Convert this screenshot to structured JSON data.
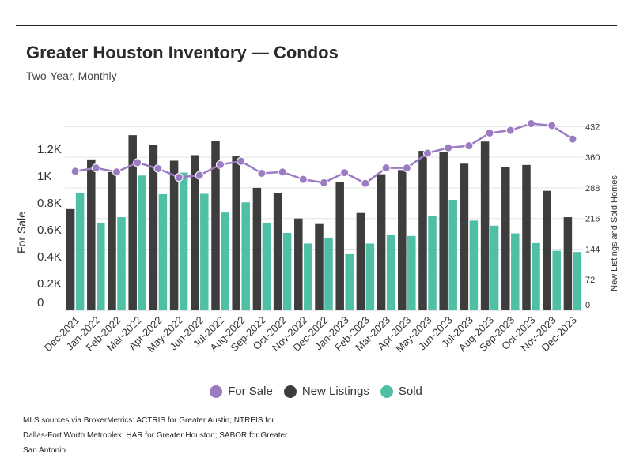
{
  "header": {
    "title": "Greater Houston Inventory — Condos",
    "subtitle": "Two-Year, Monthly"
  },
  "legend": {
    "items": [
      {
        "label": "For Sale",
        "color": "#9b7bc1"
      },
      {
        "label": "New Listings",
        "color": "#3d3d3d"
      },
      {
        "label": "Sold",
        "color": "#4fbfa5"
      }
    ]
  },
  "source": "MLS sources via BrokerMetrics: ACTRIS for Greater Austin; NTREIS for Dallas-Fort Worth Metroplex; HAR for Greater Houston; SABOR for Greater San Antonio",
  "chart_data": {
    "type": "bar",
    "categories": [
      "Dec-2021",
      "Jan-2022",
      "Feb-2022",
      "Mar-2022",
      "Apr-2022",
      "May-2022",
      "Jun-2022",
      "Jul-2022",
      "Aug-2022",
      "Sep-2022",
      "Oct-2022",
      "Nov-2022",
      "Dec-2022",
      "Jan-2023",
      "Feb-2023",
      "Mar-2023",
      "Apr-2023",
      "May-2023",
      "Jun-2023",
      "Jul-2023",
      "Aug-2023",
      "Sep-2023",
      "Oct-2023",
      "Nov-2023",
      "Dec-2023"
    ],
    "series": [
      {
        "name": "For Sale",
        "type": "line",
        "axis": "left",
        "color": "#9b7bc1",
        "values": [
          1035,
          1060,
          1030,
          1100,
          1055,
          990,
          1005,
          1085,
          1110,
          1020,
          1030,
          975,
          950,
          1025,
          945,
          1060,
          1060,
          1170,
          1210,
          1225,
          1320,
          1340,
          1390,
          1375,
          1275
        ]
      },
      {
        "name": "New Listings",
        "type": "bar",
        "axis": "right",
        "color": "#3d3d3d",
        "values": [
          238,
          355,
          325,
          412,
          390,
          352,
          365,
          398,
          362,
          288,
          275,
          216,
          203,
          302,
          229,
          320,
          330,
          375,
          372,
          345,
          397,
          338,
          342,
          281,
          219
        ]
      },
      {
        "name": "Sold",
        "type": "bar",
        "axis": "right",
        "color": "#4fbfa5",
        "values": [
          276,
          206,
          219,
          317,
          273,
          324,
          274,
          230,
          254,
          206,
          182,
          157,
          171,
          132,
          157,
          178,
          175,
          222,
          260,
          211,
          199,
          181,
          158,
          140,
          137
        ]
      }
    ],
    "y_left": {
      "label": "For Sale",
      "ticks": [
        "0",
        "0.2K",
        "0.4K",
        "0.6K",
        "0.8K",
        "1K",
        "1.2K"
      ],
      "range": [
        0,
        1440
      ]
    },
    "y_right": {
      "label": "New Listings and Sold Homes",
      "ticks": [
        "0",
        "72",
        "144",
        "216",
        "288",
        "360",
        "432"
      ],
      "range": [
        0,
        455
      ]
    },
    "grid": true,
    "legend_position": "bottom"
  }
}
